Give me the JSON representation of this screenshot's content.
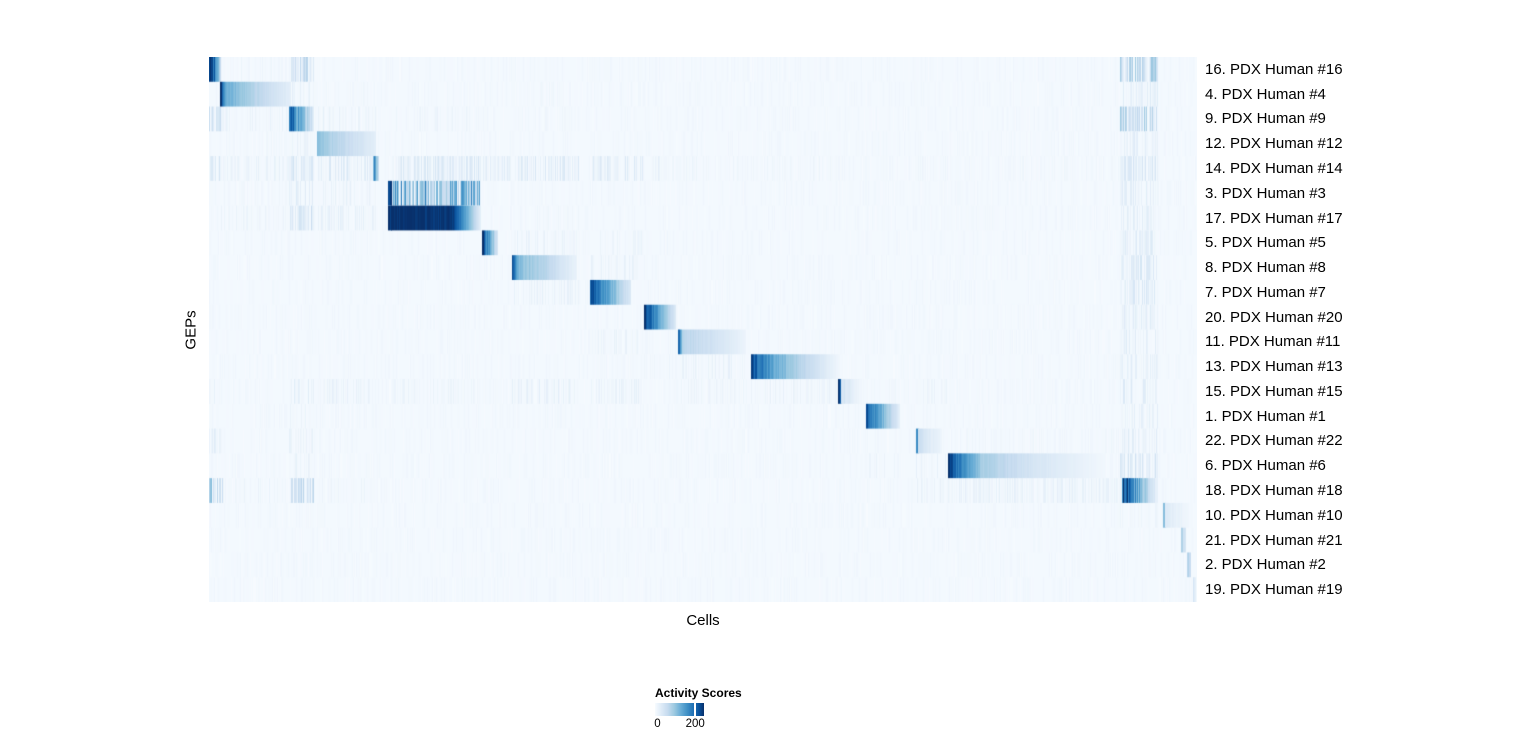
{
  "chart_data": {
    "type": "heatmap",
    "title": "",
    "xlabel": "Cells",
    "ylabel": "GEPs",
    "rows": [
      "16. PDX Human #16",
      "4. PDX Human #4",
      "9. PDX Human #9",
      "12. PDX Human #12",
      "14. PDX Human #14",
      "3. PDX Human #3",
      "17. PDX Human #17",
      "5. PDX Human #5",
      "8. PDX Human #8",
      "7. PDX Human #7",
      "20. PDX Human #20",
      "11. PDX Human #11",
      "13. PDX Human #13",
      "15. PDX Human #15",
      "1. PDX Human #1",
      "22. PDX Human #22",
      "6. PDX Human #6",
      "18. PDX Human #18",
      "10. PDX Human #10",
      "21. PDX Human #21",
      "2. PDX Human #2",
      "19. PDX Human #19"
    ],
    "legend": {
      "title": "Activity Scores",
      "min_value": 0,
      "ticks": [
        {
          "label": "0",
          "pos": 0.05,
          "line": false
        },
        {
          "label": "200",
          "pos": 0.82,
          "line": true
        }
      ]
    },
    "colormap": {
      "name": "Blues",
      "stops": [
        [
          0.0,
          "#F7FBFF"
        ],
        [
          0.13,
          "#DEEBF7"
        ],
        [
          0.26,
          "#C6DBEF"
        ],
        [
          0.39,
          "#9ECAE1"
        ],
        [
          0.52,
          "#6BAED6"
        ],
        [
          0.65,
          "#4292C6"
        ],
        [
          0.78,
          "#2171B5"
        ],
        [
          0.9,
          "#08519C"
        ],
        [
          1.0,
          "#08306B"
        ]
      ]
    },
    "background_level": 0.02,
    "texture": {
      "density": 0.45,
      "imin": 0.005,
      "imax": 0.04
    },
    "blocks": [
      {
        "row": 0,
        "x0": 0.0,
        "x1": 0.0121,
        "noise": 0.08,
        "stops": [
          [
            0,
            1.0
          ],
          [
            0.45,
            0.8
          ],
          [
            1,
            0.18
          ]
        ]
      },
      {
        "row": 1,
        "x0": 0.0121,
        "x1": 0.082,
        "noise": 0.04,
        "stops": [
          [
            0,
            0.95
          ],
          [
            0.06,
            0.52
          ],
          [
            0.5,
            0.3
          ],
          [
            1,
            0.1
          ]
        ]
      },
      {
        "row": 2,
        "x0": 0.081,
        "x1": 0.1053,
        "noise": 0.12,
        "stops": [
          [
            0,
            0.88
          ],
          [
            0.45,
            0.5
          ],
          [
            1,
            0.15
          ]
        ]
      },
      {
        "row": 3,
        "x0": 0.1103,
        "x1": 0.169,
        "noise": 0.04,
        "stops": [
          [
            0,
            0.45
          ],
          [
            0.2,
            0.33
          ],
          [
            1,
            0.1
          ]
        ]
      },
      {
        "row": 4,
        "x0": 0.167,
        "x1": 0.1713,
        "noise": 0.18,
        "stops": [
          [
            0,
            0.6
          ],
          [
            1,
            0.35
          ]
        ]
      },
      {
        "row": 5,
        "x0": 0.1812,
        "x1": 0.1848,
        "noise": 0.04,
        "stops": [
          [
            0,
            1.0
          ],
          [
            1,
            0.92
          ]
        ]
      },
      {
        "row": 6,
        "x0": 0.1812,
        "x1": 0.1848,
        "noise": 0.04,
        "stops": [
          [
            0,
            1.0
          ],
          [
            1,
            0.92
          ]
        ]
      },
      {
        "row": 6,
        "x0": 0.1852,
        "x1": 0.2753,
        "noise": 0.02,
        "stops": [
          [
            0,
            1.0
          ],
          [
            0.68,
            0.98
          ],
          [
            0.9,
            0.35
          ],
          [
            1,
            0.07
          ]
        ]
      },
      {
        "row": 7,
        "x0": 0.2773,
        "x1": 0.2925,
        "noise": 0.08,
        "stops": [
          [
            0,
            0.9
          ],
          [
            0.5,
            0.5
          ],
          [
            1,
            0.12
          ]
        ]
      },
      {
        "row": 8,
        "x0": 0.3067,
        "x1": 0.3715,
        "noise": 0.05,
        "stops": [
          [
            0,
            0.85
          ],
          [
            0.1,
            0.45
          ],
          [
            0.55,
            0.28
          ],
          [
            1,
            0.07
          ]
        ]
      },
      {
        "row": 9,
        "x0": 0.3866,
        "x1": 0.4271,
        "noise": 0.06,
        "stops": [
          [
            0,
            0.88
          ],
          [
            0.35,
            0.6
          ],
          [
            1,
            0.12
          ]
        ]
      },
      {
        "row": 10,
        "x0": 0.4403,
        "x1": 0.4717,
        "noise": 0.05,
        "stops": [
          [
            0,
            0.95
          ],
          [
            0.45,
            0.6
          ],
          [
            1,
            0.14
          ]
        ]
      },
      {
        "row": 11,
        "x0": 0.4757,
        "x1": 0.5435,
        "noise": 0.04,
        "stops": [
          [
            0,
            0.75
          ],
          [
            0.05,
            0.3
          ],
          [
            0.5,
            0.2
          ],
          [
            1,
            0.05
          ]
        ]
      },
      {
        "row": 12,
        "x0": 0.5486,
        "x1": 0.6367,
        "noise": 0.05,
        "stops": [
          [
            0,
            0.9
          ],
          [
            0.25,
            0.55
          ],
          [
            0.65,
            0.25
          ],
          [
            1,
            0.04
          ]
        ]
      },
      {
        "row": 13,
        "x0": 0.6367,
        "x1": 0.6402,
        "noise": 0.05,
        "stops": [
          [
            0,
            0.95
          ],
          [
            1,
            0.85
          ]
        ]
      },
      {
        "row": 13,
        "x0": 0.6402,
        "x1": 0.659,
        "noise": 0.1,
        "stops": [
          [
            0,
            0.18
          ],
          [
            1,
            0.04
          ]
        ]
      },
      {
        "row": 14,
        "x0": 0.665,
        "x1": 0.6984,
        "noise": 0.05,
        "stops": [
          [
            0,
            0.9
          ],
          [
            0.4,
            0.55
          ],
          [
            1,
            0.1
          ]
        ]
      },
      {
        "row": 15,
        "x0": 0.7156,
        "x1": 0.7186,
        "noise": 0.1,
        "stops": [
          [
            0,
            0.65
          ],
          [
            1,
            0.5
          ]
        ]
      },
      {
        "row": 15,
        "x0": 0.7186,
        "x1": 0.7409,
        "noise": 0.08,
        "stops": [
          [
            0,
            0.2
          ],
          [
            1,
            0.05
          ]
        ]
      },
      {
        "row": 16,
        "x0": 0.748,
        "x1": 0.9069,
        "noise": 0.04,
        "stops": [
          [
            0,
            1.0
          ],
          [
            0.05,
            0.78
          ],
          [
            0.22,
            0.35
          ],
          [
            0.55,
            0.17
          ],
          [
            1,
            0.03
          ]
        ]
      },
      {
        "row": 17,
        "x0": 0.9241,
        "x1": 0.9605,
        "noise": 0.14,
        "stops": [
          [
            0,
            0.92
          ],
          [
            0.35,
            0.6
          ],
          [
            0.78,
            0.22
          ],
          [
            1,
            0.05
          ]
        ]
      },
      {
        "row": 18,
        "x0": 0.9656,
        "x1": 0.9686,
        "noise": 0.1,
        "stops": [
          [
            0,
            0.55
          ],
          [
            1,
            0.45
          ]
        ]
      },
      {
        "row": 18,
        "x0": 0.9686,
        "x1": 0.9909,
        "noise": 0.1,
        "stops": [
          [
            0,
            0.13
          ],
          [
            1,
            0.03
          ]
        ]
      },
      {
        "row": 19,
        "x0": 0.9848,
        "x1": 0.9879,
        "noise": 0.1,
        "stops": [
          [
            0,
            0.28
          ],
          [
            1,
            0.18
          ]
        ]
      },
      {
        "row": 20,
        "x0": 0.9899,
        "x1": 0.9934,
        "noise": 0.1,
        "stops": [
          [
            0,
            0.33
          ],
          [
            1,
            0.2
          ]
        ]
      },
      {
        "row": 21,
        "x0": 0.996,
        "x1": 0.998,
        "noise": 0.1,
        "stops": [
          [
            0,
            0.16
          ],
          [
            1,
            0.08
          ]
        ]
      }
    ],
    "streaks": [
      [
        0,
        0.081,
        0.1053,
        0.06,
        0.32,
        0.75
      ],
      [
        0,
        0.9221,
        0.9605,
        0.08,
        0.4,
        0.8
      ],
      [
        0,
        0.0121,
        0.082,
        0.01,
        0.06,
        0.4
      ],
      [
        1,
        0.081,
        0.1053,
        0.02,
        0.1,
        0.5
      ],
      [
        1,
        0.9221,
        0.9605,
        0.03,
        0.13,
        0.6
      ],
      [
        1,
        0.1103,
        0.169,
        0.01,
        0.05,
        0.4
      ],
      [
        1,
        0.3067,
        0.3735,
        0.01,
        0.05,
        0.4
      ],
      [
        1,
        0.3866,
        0.4393,
        0.01,
        0.05,
        0.4
      ],
      [
        2,
        0.0,
        0.014,
        0.05,
        0.3,
        0.8
      ],
      [
        2,
        0.0121,
        0.082,
        0.02,
        0.08,
        0.5
      ],
      [
        2,
        0.1103,
        0.169,
        0.02,
        0.09,
        0.5
      ],
      [
        2,
        0.1852,
        0.2753,
        0.015,
        0.07,
        0.4
      ],
      [
        2,
        0.9221,
        0.9605,
        0.08,
        0.4,
        0.8
      ],
      [
        2,
        0.3067,
        0.3735,
        0.01,
        0.05,
        0.4
      ],
      [
        3,
        0.081,
        0.1053,
        0.02,
        0.1,
        0.5
      ],
      [
        3,
        0.9221,
        0.9605,
        0.04,
        0.14,
        0.6
      ],
      [
        3,
        0.748,
        0.9221,
        0.008,
        0.04,
        0.4
      ],
      [
        3,
        0.0121,
        0.082,
        0.01,
        0.05,
        0.4
      ],
      [
        4,
        0.0,
        0.0121,
        0.04,
        0.18,
        0.7
      ],
      [
        4,
        0.0121,
        0.082,
        0.02,
        0.09,
        0.6
      ],
      [
        4,
        0.081,
        0.1053,
        0.05,
        0.22,
        0.8
      ],
      [
        4,
        0.1103,
        0.169,
        0.04,
        0.16,
        0.7
      ],
      [
        4,
        0.1852,
        0.2753,
        0.04,
        0.18,
        0.7
      ],
      [
        4,
        0.2773,
        0.3047,
        0.03,
        0.12,
        0.6
      ],
      [
        4,
        0.3067,
        0.3735,
        0.04,
        0.18,
        0.7
      ],
      [
        4,
        0.3866,
        0.4393,
        0.04,
        0.15,
        0.7
      ],
      [
        4,
        0.4403,
        0.4727,
        0.03,
        0.1,
        0.6
      ],
      [
        4,
        0.4757,
        0.5455,
        0.015,
        0.06,
        0.5
      ],
      [
        4,
        0.5486,
        0.6387,
        0.015,
        0.06,
        0.5
      ],
      [
        4,
        0.7156,
        0.746,
        0.015,
        0.06,
        0.5
      ],
      [
        4,
        0.748,
        0.9221,
        0.01,
        0.05,
        0.45
      ],
      [
        4,
        0.9221,
        0.9605,
        0.05,
        0.2,
        0.75
      ],
      [
        5,
        0.1852,
        0.2753,
        0.22,
        0.75,
        0.85
      ],
      [
        5,
        0.081,
        0.1053,
        0.03,
        0.13,
        0.6
      ],
      [
        5,
        0.1103,
        0.169,
        0.02,
        0.09,
        0.5
      ],
      [
        5,
        0.9221,
        0.9605,
        0.03,
        0.12,
        0.5
      ],
      [
        5,
        0.0121,
        0.082,
        0.01,
        0.05,
        0.4
      ],
      [
        6,
        0.081,
        0.1053,
        0.06,
        0.28,
        0.75
      ],
      [
        6,
        0.1103,
        0.169,
        0.03,
        0.1,
        0.6
      ],
      [
        6,
        0.0121,
        0.082,
        0.015,
        0.07,
        0.4
      ],
      [
        6,
        0.9221,
        0.9605,
        0.04,
        0.13,
        0.5
      ],
      [
        6,
        0.3067,
        0.3735,
        0.01,
        0.05,
        0.4
      ],
      [
        7,
        0.3067,
        0.3735,
        0.02,
        0.09,
        0.5
      ],
      [
        7,
        0.3866,
        0.4393,
        0.015,
        0.07,
        0.4
      ],
      [
        7,
        0.9221,
        0.9605,
        0.04,
        0.15,
        0.6
      ],
      [
        8,
        0.3866,
        0.4393,
        0.02,
        0.09,
        0.5
      ],
      [
        8,
        0.9221,
        0.9605,
        0.05,
        0.18,
        0.65
      ],
      [
        8,
        0.748,
        0.9221,
        0.008,
        0.035,
        0.4
      ],
      [
        9,
        0.3067,
        0.3735,
        0.02,
        0.09,
        0.5
      ],
      [
        9,
        0.9221,
        0.9605,
        0.05,
        0.18,
        0.65
      ],
      [
        10,
        0.9221,
        0.9605,
        0.04,
        0.13,
        0.55
      ],
      [
        10,
        0.748,
        0.9221,
        0.008,
        0.03,
        0.35
      ],
      [
        11,
        0.3866,
        0.4393,
        0.02,
        0.08,
        0.5
      ],
      [
        11,
        0.9221,
        0.9605,
        0.04,
        0.13,
        0.55
      ],
      [
        12,
        0.4757,
        0.5455,
        0.02,
        0.09,
        0.5
      ],
      [
        12,
        0.4403,
        0.4727,
        0.015,
        0.07,
        0.4
      ],
      [
        12,
        0.9221,
        0.9605,
        0.04,
        0.13,
        0.55
      ],
      [
        13,
        0.0,
        0.0121,
        0.02,
        0.1,
        0.6
      ],
      [
        13,
        0.081,
        0.1053,
        0.03,
        0.13,
        0.65
      ],
      [
        13,
        0.1103,
        0.169,
        0.02,
        0.09,
        0.6
      ],
      [
        13,
        0.1852,
        0.2753,
        0.015,
        0.07,
        0.5
      ],
      [
        13,
        0.3067,
        0.3735,
        0.02,
        0.1,
        0.6
      ],
      [
        13,
        0.3866,
        0.4393,
        0.02,
        0.09,
        0.55
      ],
      [
        13,
        0.4757,
        0.5455,
        0.015,
        0.07,
        0.5
      ],
      [
        13,
        0.5486,
        0.6387,
        0.02,
        0.08,
        0.55
      ],
      [
        13,
        0.665,
        0.6994,
        0.015,
        0.06,
        0.4
      ],
      [
        13,
        0.7156,
        0.746,
        0.015,
        0.07,
        0.5
      ],
      [
        13,
        0.748,
        0.9221,
        0.01,
        0.04,
        0.4
      ],
      [
        13,
        0.9221,
        0.9605,
        0.04,
        0.16,
        0.65
      ],
      [
        14,
        0.9221,
        0.9605,
        0.03,
        0.11,
        0.5
      ],
      [
        14,
        0.081,
        0.1053,
        0.015,
        0.07,
        0.4
      ],
      [
        15,
        0.748,
        0.9221,
        0.012,
        0.05,
        0.5
      ],
      [
        15,
        0.9221,
        0.9605,
        0.04,
        0.13,
        0.55
      ],
      [
        15,
        0.0,
        0.0121,
        0.03,
        0.13,
        0.6
      ],
      [
        15,
        0.081,
        0.1053,
        0.02,
        0.09,
        0.5
      ],
      [
        16,
        0.7156,
        0.746,
        0.02,
        0.09,
        0.55
      ],
      [
        16,
        0.665,
        0.6994,
        0.015,
        0.07,
        0.4
      ],
      [
        16,
        0.081,
        0.1053,
        0.02,
        0.09,
        0.5
      ],
      [
        16,
        0.9221,
        0.9605,
        0.06,
        0.22,
        0.7
      ],
      [
        17,
        0.0,
        0.004,
        0.3,
        0.55,
        0.9
      ],
      [
        17,
        0.004,
        0.014,
        0.1,
        0.3,
        0.7
      ],
      [
        17,
        0.081,
        0.1053,
        0.06,
        0.3,
        0.8
      ],
      [
        17,
        0.0121,
        0.082,
        0.015,
        0.07,
        0.4
      ],
      [
        17,
        0.7156,
        0.746,
        0.02,
        0.09,
        0.5
      ],
      [
        17,
        0.748,
        0.9221,
        0.03,
        0.1,
        0.65
      ],
      [
        17,
        0.1103,
        0.169,
        0.015,
        0.06,
        0.4
      ],
      [
        18,
        0.9221,
        0.9605,
        0.015,
        0.06,
        0.4
      ]
    ]
  }
}
